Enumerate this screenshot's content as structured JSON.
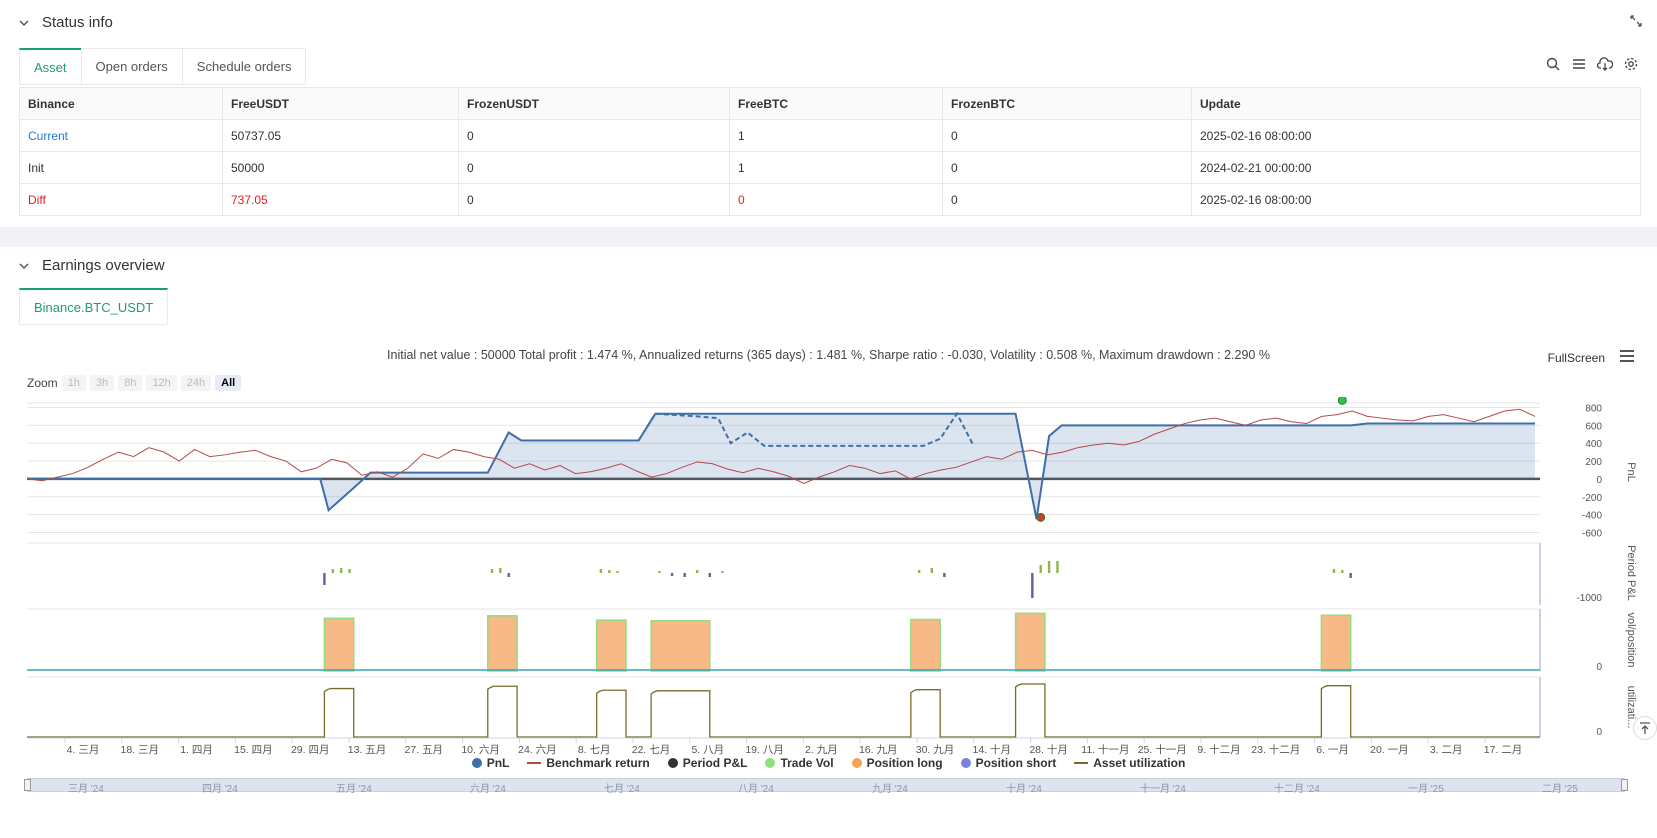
{
  "status": {
    "title": "Status info",
    "tabs": [
      {
        "label": "Asset",
        "active": true
      },
      {
        "label": "Open orders",
        "active": false
      },
      {
        "label": "Schedule orders",
        "active": false
      }
    ],
    "table": {
      "headers": [
        "Binance",
        "FreeUSDT",
        "FrozenUSDT",
        "FreeBTC",
        "FrozenBTC",
        "Update"
      ],
      "rows": [
        [
          "Current",
          "50737.05",
          "0",
          "1",
          "0",
          "2025-02-16 08:00:00"
        ],
        [
          "Init",
          "50000",
          "0",
          "1",
          "0",
          "2024-02-21 00:00:00"
        ],
        [
          "Diff",
          "737.05",
          "0",
          "0",
          "0",
          "2025-02-16 08:00:00"
        ]
      ]
    }
  },
  "earnings": {
    "title": "Earnings overview",
    "tab": "Binance.BTC_USDT",
    "summary": "Initial net value : 50000 Total profit : 1.474 %, Annualized returns (365 days) : 1.481 %, Sharpe ratio : -0.030, Volatility : 0.508 %, Maximum drawdown : 2.290 %",
    "fullscreen_label": "FullScreen",
    "zoom_label": "Zoom",
    "zoom_buttons": [
      {
        "label": "1h",
        "active": false
      },
      {
        "label": "3h",
        "active": false
      },
      {
        "label": "8h",
        "active": false
      },
      {
        "label": "12h",
        "active": false
      },
      {
        "label": "24h",
        "active": false
      },
      {
        "label": "All",
        "active": true
      }
    ],
    "legend": [
      {
        "label": "PnL",
        "color": "#3f6fa8",
        "shape": "dot"
      },
      {
        "label": "Benchmark return",
        "color": "#b34a4a",
        "shape": "line"
      },
      {
        "label": "Period P&L",
        "color": "#333333",
        "shape": "dot"
      },
      {
        "label": "Trade Vol",
        "color": "#8fe07a",
        "shape": "dot"
      },
      {
        "label": "Position long",
        "color": "#f5a55a",
        "shape": "dot"
      },
      {
        "label": "Position short",
        "color": "#7b7fe0",
        "shape": "dot"
      },
      {
        "label": "Asset utilization",
        "color": "#7a6a2a",
        "shape": "line"
      }
    ],
    "navigator_labels": [
      "三月 '24",
      "四月 '24",
      "五月 '24",
      "六月 '24",
      "七月 '24",
      "八月 '24",
      "九月 '24",
      "十月 '24",
      "十一月 '24",
      "十二月 '24",
      "一月 '25",
      "二月 '25"
    ]
  },
  "chart_data": {
    "type": "line",
    "x_tick_labels": [
      "4. 三月",
      "18. 三月",
      "1. 四月",
      "15. 四月",
      "29. 四月",
      "13. 五月",
      "27. 五月",
      "10. 六月",
      "24. 六月",
      "8. 七月",
      "22. 七月",
      "5. 八月",
      "19. 八月",
      "2. 九月",
      "16. 九月",
      "30. 九月",
      "14. 十月",
      "28. 十月",
      "11. 十一月",
      "25. 十一月",
      "9. 十二月",
      "23. 十二月",
      "6. 一月",
      "20. 一月",
      "3. 二月",
      "17. 二月"
    ],
    "panes": [
      {
        "name": "PnL",
        "axis_title": "PnL",
        "y_ticks": [
          800,
          600,
          400,
          200,
          0,
          -200,
          -400,
          -600
        ],
        "ylim": [
          -650,
          850
        ]
      },
      {
        "name": "Period P&L",
        "axis_title": "Period P&L",
        "y_ticks": [
          -1000
        ]
      },
      {
        "name": "vol/position",
        "axis_title": "vol/position",
        "y_ticks": [
          0
        ]
      },
      {
        "name": "utilization",
        "axis_title": "utilizati...",
        "y_ticks": [
          0
        ]
      }
    ],
    "pnl_series": {
      "x_day": [
        0,
        70,
        72,
        78,
        82,
        110,
        115,
        118,
        125,
        138,
        146,
        150,
        232,
        236,
        241,
        244,
        247,
        310,
        316,
        320,
        335,
        360
      ],
      "y": [
        0,
        0,
        -350,
        -100,
        70,
        70,
        520,
        430,
        430,
        430,
        430,
        730,
        730,
        730,
        -450,
        480,
        600,
        600,
        600,
        620,
        620,
        620
      ]
    },
    "pnl_dashed_series": {
      "x_day": [
        146,
        150,
        160,
        165,
        168,
        172,
        176,
        214,
        218,
        222,
        226
      ],
      "y": [
        430,
        730,
        700,
        680,
        400,
        520,
        370,
        370,
        450,
        730,
        370
      ]
    },
    "markers": [
      {
        "x_day": 242,
        "y": -430,
        "color": "#d33a2c"
      },
      {
        "x_day": 314,
        "y": 880,
        "color": "#2dc44d"
      }
    ],
    "benchmark_y": [
      0,
      -20,
      20,
      60,
      130,
      220,
      300,
      250,
      350,
      300,
      200,
      330,
      250,
      270,
      300,
      320,
      250,
      200,
      80,
      120,
      220,
      180,
      40,
      80,
      20,
      120,
      280,
      230,
      330,
      300,
      250,
      220,
      120,
      170,
      100,
      150,
      60,
      80,
      120,
      170,
      90,
      20,
      60,
      130,
      190,
      170,
      110,
      70,
      120,
      80,
      30,
      -50,
      20,
      80,
      150,
      120,
      60,
      90,
      0,
      60,
      100,
      130,
      190,
      250,
      220,
      300,
      320,
      270,
      300,
      350,
      380,
      400,
      380,
      420,
      500,
      560,
      620,
      660,
      680,
      640,
      600,
      660,
      680,
      640,
      620,
      700,
      720,
      760,
      700,
      680,
      660,
      650,
      700,
      720,
      680,
      640,
      700,
      760,
      780,
      700
    ],
    "period_pnl_bars": [
      {
        "x_day": 71,
        "v": -120
      },
      {
        "x_day": 73,
        "v": 40
      },
      {
        "x_day": 75,
        "v": 50
      },
      {
        "x_day": 77,
        "v": 40
      },
      {
        "x_day": 111,
        "v": 40
      },
      {
        "x_day": 113,
        "v": 50
      },
      {
        "x_day": 115,
        "v": -40
      },
      {
        "x_day": 137,
        "v": 40
      },
      {
        "x_day": 139,
        "v": 30
      },
      {
        "x_day": 141,
        "v": 20
      },
      {
        "x_day": 151,
        "v": 20
      },
      {
        "x_day": 154,
        "v": -30
      },
      {
        "x_day": 157,
        "v": -40
      },
      {
        "x_day": 160,
        "v": 30
      },
      {
        "x_day": 163,
        "v": -40
      },
      {
        "x_day": 166,
        "v": 20
      },
      {
        "x_day": 213,
        "v": 30
      },
      {
        "x_day": 216,
        "v": 50
      },
      {
        "x_day": 219,
        "v": -40
      },
      {
        "x_day": 240,
        "v": -250
      },
      {
        "x_day": 242,
        "v": 80
      },
      {
        "x_day": 244,
        "v": 120
      },
      {
        "x_day": 246,
        "v": 120
      },
      {
        "x_day": 312,
        "v": 40
      },
      {
        "x_day": 314,
        "v": 30
      },
      {
        "x_day": 316,
        "v": -50
      }
    ],
    "position_blocks": [
      {
        "x_start": 71,
        "x_end": 78,
        "h": 0.85
      },
      {
        "x_start": 110,
        "x_end": 117,
        "h": 0.89
      },
      {
        "x_start": 136,
        "x_end": 143,
        "h": 0.82
      },
      {
        "x_start": 149,
        "x_end": 163,
        "h": 0.81
      },
      {
        "x_start": 211,
        "x_end": 218,
        "h": 0.83
      },
      {
        "x_start": 236,
        "x_end": 243,
        "h": 0.93
      },
      {
        "x_start": 309,
        "x_end": 316,
        "h": 0.9
      }
    ]
  }
}
